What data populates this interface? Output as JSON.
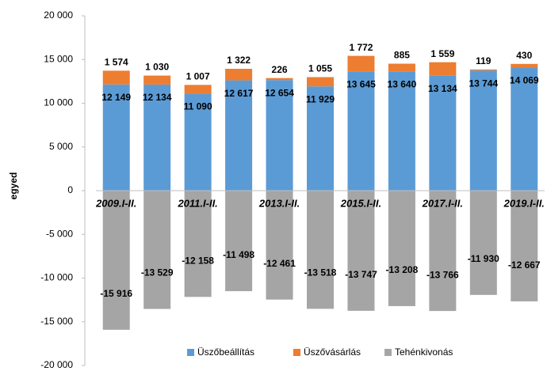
{
  "chart_data": {
    "type": "stacked_bar",
    "y_label": "egyed",
    "categories": [
      "2009.I-II.",
      null,
      "2011.I-II.",
      null,
      "2013.I-II.",
      null,
      "2015.I-II.",
      null,
      "2017.I-II.",
      null,
      "2019.I-II."
    ],
    "series": [
      {
        "name": "Üszőbeállítás",
        "color": "#5b9bd5",
        "values": [
          12149,
          12134,
          11090,
          12617,
          12654,
          11929,
          13645,
          13640,
          13134,
          13744,
          14069
        ],
        "value_labels": [
          "12 149",
          "12 134",
          "11 090",
          "12 617",
          "12 654",
          "11 929",
          "13 645",
          "13 640",
          "13 134",
          "13 744",
          "14 069"
        ]
      },
      {
        "name": "Üszővásárlás",
        "color": "#ed7d31",
        "values": [
          1574,
          1030,
          1007,
          1322,
          226,
          1055,
          1772,
          885,
          1559,
          119,
          430
        ],
        "value_labels": [
          "1 574",
          "1 030",
          "1 007",
          "1 322",
          "226",
          "1 055",
          "1 772",
          "885",
          "1 559",
          "119",
          "430"
        ]
      },
      {
        "name": "Tehénkivonás",
        "color": "#a5a5a5",
        "values": [
          -15916,
          -13529,
          -12158,
          -11498,
          -12461,
          -13518,
          -13747,
          -13208,
          -13766,
          -11930,
          -12667
        ],
        "value_labels": [
          "-15 916",
          "-13 529",
          "-12 158",
          "-11 498",
          "-12 461",
          "-13 518",
          "-13 747",
          "-13 208",
          "-13 766",
          "-11 930",
          "-12 667"
        ]
      }
    ],
    "ylim": [
      -20000,
      20000
    ],
    "yticks": [
      {
        "value": -20000,
        "label": "-20 000"
      },
      {
        "value": -15000,
        "label": "-15 000"
      },
      {
        "value": -10000,
        "label": "-10 000"
      },
      {
        "value": -5000,
        "label": "-5 000"
      },
      0,
      {
        "value": 5000,
        "label": "5 000"
      },
      {
        "value": 10000,
        "label": "10 000"
      },
      {
        "value": 15000,
        "label": "15 000"
      },
      {
        "value": 20000,
        "label": "20 000"
      }
    ],
    "grid": false,
    "legend": "bottom"
  }
}
